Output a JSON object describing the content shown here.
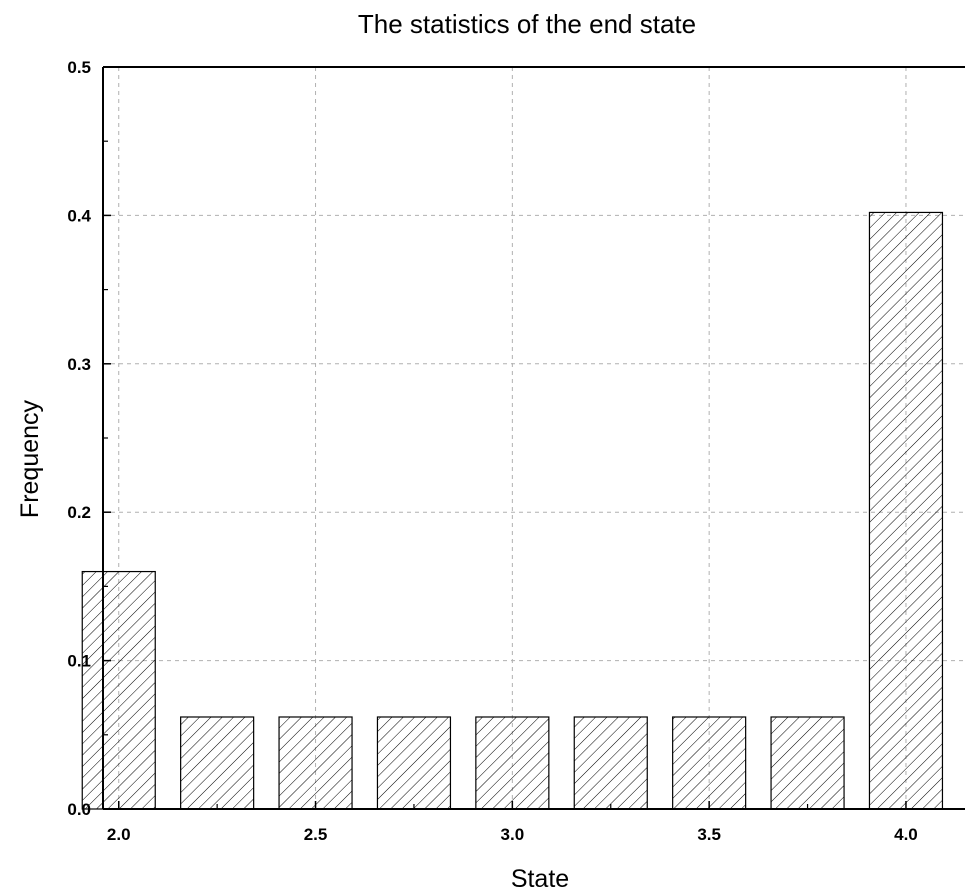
{
  "chart_data": {
    "type": "bar",
    "title": "The statistics of the end state",
    "xlabel": "State",
    "ylabel": "Frequency",
    "x": [
      2.0,
      2.25,
      2.5,
      2.75,
      3.0,
      3.25,
      3.5,
      3.75,
      4.0
    ],
    "values": [
      0.16,
      0.062,
      0.062,
      0.062,
      0.062,
      0.062,
      0.062,
      0.062,
      0.402
    ],
    "xlim": [
      1.96,
      4.15
    ],
    "ylim": [
      0,
      0.5
    ],
    "xticks": [
      2.0,
      2.5,
      3.0,
      3.5,
      4.0
    ],
    "xtick_labels": [
      "2.0",
      "2.5",
      "3.0",
      "3.5",
      "4.0"
    ],
    "yticks": [
      0.0,
      0.1,
      0.2,
      0.3,
      0.4,
      0.5
    ],
    "ytick_labels": [
      "0.0",
      "0.1",
      "0.2",
      "0.3",
      "0.4",
      "0.5"
    ],
    "grid": true,
    "bar_fill": "hatched",
    "colors": {
      "bar_edge": "#000000",
      "hatch": "#000000",
      "grid": "#b0b0b0",
      "axes": "#000000"
    }
  }
}
